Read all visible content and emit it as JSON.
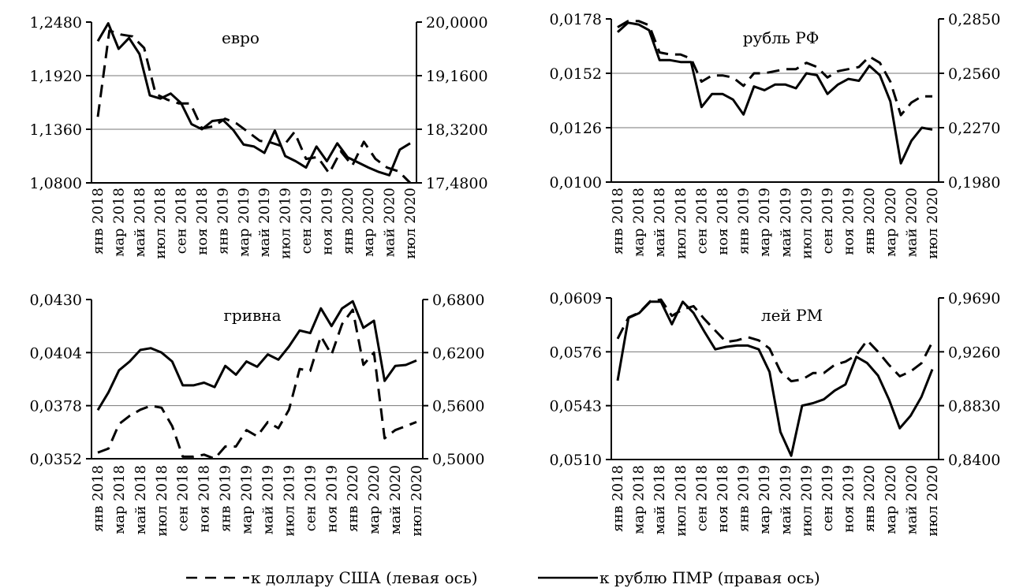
{
  "chart_data": [
    {
      "type": "line",
      "title": "евро",
      "left_axis": {
        "ticks": [
          "1,0800",
          "1,1360",
          "1,1920",
          "1,2480"
        ],
        "range": [
          1.08,
          1.248
        ]
      },
      "right_axis": {
        "ticks": [
          "17,4800",
          "18,3200",
          "19,1600",
          "20,0000"
        ],
        "range": [
          17.48,
          20.0
        ]
      },
      "x_ticks": [
        "янв 2018",
        "мар 2018",
        "май 2018",
        "июл 2018",
        "сен 2018",
        "ноя 2018",
        "янв 2019",
        "мар 2019",
        "май 2019",
        "июл 2019",
        "сен 2019",
        "ноя 2019",
        "янв 2020",
        "мар 2020",
        "май 2020",
        "июл 2020"
      ],
      "series": [
        {
          "name": "к доллару США (левая ось)",
          "axis": "left",
          "style": "dashed",
          "values": [
            1.149,
            1.239,
            1.235,
            1.233,
            1.221,
            1.173,
            1.167,
            1.163,
            1.163,
            1.137,
            1.139,
            1.147,
            1.142,
            1.133,
            1.124,
            1.122,
            1.118,
            1.133,
            1.105,
            1.107,
            1.09,
            1.113,
            1.098,
            1.123,
            1.105,
            1.096,
            1.092,
            1.08
          ]
        },
        {
          "name": "к рублю ПМР (правая ось)",
          "axis": "right",
          "style": "solid",
          "values": [
            19.7,
            19.98,
            19.58,
            19.75,
            19.5,
            18.85,
            18.8,
            18.88,
            18.73,
            18.4,
            18.32,
            18.45,
            18.47,
            18.31,
            18.08,
            18.05,
            17.95,
            18.3,
            17.9,
            17.82,
            17.72,
            18.05,
            17.82,
            18.1,
            17.88,
            17.8,
            17.72,
            17.65,
            17.6,
            18.0,
            18.1
          ]
        }
      ]
    },
    {
      "type": "line",
      "title": "рубль РФ",
      "left_axis": {
        "ticks": [
          "0,0100",
          "0,0126",
          "0,0152",
          "0,0178"
        ],
        "range": [
          0.01,
          0.0178
        ]
      },
      "right_axis": {
        "ticks": [
          "0,1980",
          "0,2270",
          "0,2560",
          "0,2850"
        ],
        "range": [
          0.198,
          0.285
        ]
      },
      "x_ticks": [
        "янв 2018",
        "мар 2018",
        "май 2018",
        "июл 2018",
        "сен 2018",
        "ноя 2018",
        "янв 2019",
        "мар 2019",
        "май 2019",
        "июл 2019",
        "сен 2019",
        "ноя 2019",
        "янв 2020",
        "мар 2020",
        "май 2020",
        "июл 2020"
      ],
      "series": [
        {
          "name": "к доллару США (левая ось)",
          "axis": "left",
          "style": "dashed",
          "values": [
            0.0174,
            0.0177,
            0.0177,
            0.0175,
            0.0162,
            0.0161,
            0.0161,
            0.0159,
            0.0148,
            0.0151,
            0.0151,
            0.015,
            0.0146,
            0.0152,
            0.0152,
            0.0153,
            0.0154,
            0.0154,
            0.0157,
            0.0155,
            0.015,
            0.0153,
            0.0154,
            0.0155,
            0.016,
            0.0157,
            0.0148,
            0.0132,
            0.0138,
            0.0141,
            0.0141
          ]
        },
        {
          "name": "к рублю ПМР (правая ось)",
          "axis": "right",
          "style": "solid",
          "values": [
            0.278,
            0.283,
            0.282,
            0.279,
            0.263,
            0.263,
            0.262,
            0.262,
            0.238,
            0.245,
            0.245,
            0.242,
            0.234,
            0.249,
            0.247,
            0.25,
            0.25,
            0.248,
            0.256,
            0.255,
            0.245,
            0.25,
            0.253,
            0.252,
            0.26,
            0.255,
            0.241,
            0.208,
            0.22,
            0.227,
            0.226
          ]
        }
      ]
    },
    {
      "type": "line",
      "title": "гривна",
      "left_axis": {
        "ticks": [
          "0,0352",
          "0,0378",
          "0,0404",
          "0,0430"
        ],
        "range": [
          0.0352,
          0.043
        ]
      },
      "right_axis": {
        "ticks": [
          "0,5000",
          "0,5600",
          "0,6200",
          "0,6800"
        ],
        "range": [
          0.5,
          0.68
        ]
      },
      "x_ticks": [
        "янв 2018",
        "мар 2018",
        "май 2018",
        "июл 2018",
        "сен 2018",
        "ноя 2018",
        "янв 2019",
        "мар 2019",
        "май 2019",
        "июл 2019",
        "сен 2019",
        "ноя 2019",
        "янв 2020",
        "мар 2020",
        "май 2020",
        "июл 2020"
      ],
      "series": [
        {
          "name": "к доллару США (левая ось)",
          "axis": "left",
          "style": "dashed",
          "values": [
            0.0355,
            0.0357,
            0.0369,
            0.0373,
            0.0376,
            0.0378,
            0.0377,
            0.0368,
            0.0353,
            0.0353,
            0.0354,
            0.0351,
            0.0358,
            0.0358,
            0.0366,
            0.0363,
            0.037,
            0.0367,
            0.0376,
            0.0396,
            0.0395,
            0.0412,
            0.0403,
            0.0418,
            0.0425,
            0.0398,
            0.0404,
            0.0362,
            0.0366,
            0.0368,
            0.037
          ]
        },
        {
          "name": "к рублю ПМР (правая ось)",
          "axis": "right",
          "style": "solid",
          "values": [
            0.555,
            0.575,
            0.6,
            0.61,
            0.623,
            0.625,
            0.62,
            0.61,
            0.583,
            0.583,
            0.586,
            0.581,
            0.605,
            0.595,
            0.61,
            0.604,
            0.618,
            0.612,
            0.627,
            0.645,
            0.642,
            0.67,
            0.65,
            0.67,
            0.678,
            0.648,
            0.656,
            0.588,
            0.605,
            0.606,
            0.611
          ]
        }
      ]
    },
    {
      "type": "line",
      "title": "лей РМ",
      "left_axis": {
        "ticks": [
          "0,0510",
          "0,0543",
          "0,0576",
          "0,0609"
        ],
        "range": [
          0.051,
          0.0609
        ]
      },
      "right_axis": {
        "ticks": [
          "0,8400",
          "0,8830",
          "0,9260",
          "0,9690"
        ],
        "range": [
          0.84,
          0.969
        ]
      },
      "x_ticks": [
        "янв 2018",
        "мар 2018",
        "май 2018",
        "июл 2018",
        "сен 2018",
        "ноя 2018",
        "янв 2019",
        "мар 2019",
        "май 2019",
        "июл 2019",
        "сен 2019",
        "ноя 2019",
        "янв 2020",
        "мар 2020",
        "май 2020",
        "июл 2020"
      ],
      "series": [
        {
          "name": "к доллару США (левая ось)",
          "axis": "left",
          "style": "dashed",
          "values": [
            0.0584,
            0.0597,
            0.06,
            0.0607,
            0.0608,
            0.0598,
            0.0602,
            0.0604,
            0.0596,
            0.0589,
            0.0582,
            0.0583,
            0.0585,
            0.0583,
            0.0578,
            0.0564,
            0.0558,
            0.0559,
            0.0563,
            0.0563,
            0.0568,
            0.057,
            0.0574,
            0.0583,
            0.0576,
            0.0568,
            0.0561,
            0.0564,
            0.0569,
            0.0582
          ]
        },
        {
          "name": "к рублю ПМР (правая ось)",
          "axis": "right",
          "style": "solid",
          "values": [
            0.903,
            0.953,
            0.957,
            0.966,
            0.966,
            0.948,
            0.966,
            0.957,
            0.942,
            0.928,
            0.93,
            0.931,
            0.931,
            0.928,
            0.91,
            0.862,
            0.843,
            0.883,
            0.885,
            0.888,
            0.895,
            0.9,
            0.922,
            0.917,
            0.907,
            0.888,
            0.865,
            0.875,
            0.89,
            0.912
          ]
        }
      ]
    }
  ],
  "legend": {
    "dashed_label": "к доллару США (левая ось)",
    "solid_label": "к рублю ПМР (правая ось)"
  }
}
